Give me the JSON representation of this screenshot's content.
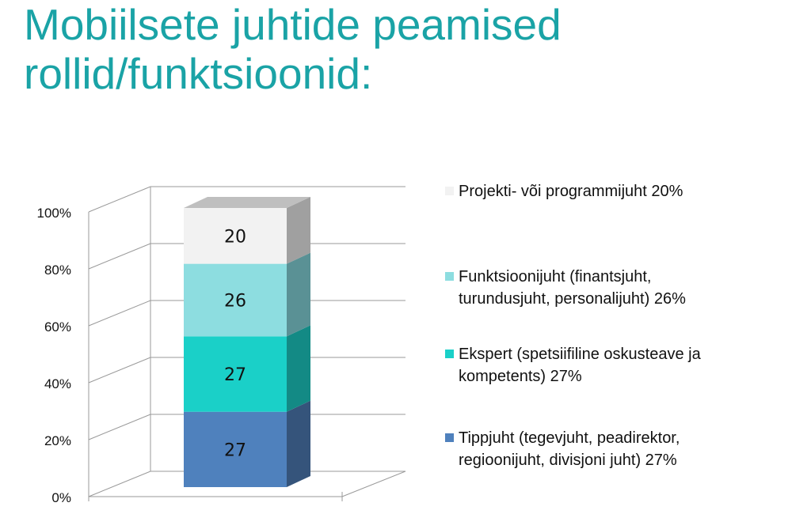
{
  "title": [
    "Mobiilsete juhtide peamised",
    "rollid/funktsioonid:"
  ],
  "colors": {
    "title": "#1aa3a6",
    "grid": "#9a9a9a",
    "axis_text": "#111111"
  },
  "chart_data": {
    "type": "bar",
    "stacked": true,
    "percent": true,
    "three_d": true,
    "categories": [
      ""
    ],
    "ylim": [
      0,
      100
    ],
    "yticks": [
      "0%",
      "20%",
      "40%",
      "60%",
      "80%",
      "100%"
    ],
    "grid": true,
    "legend_position": "right",
    "series": [
      {
        "name": "Tippjuht (tegevjuht, peadirektor, regioonijuht, divisjoni juht)  27%",
        "value": 27,
        "label": "27",
        "color": "#4f81bd",
        "side": "#35547b",
        "legend_lines": [
          "Tippjuht (tegevjuht, peadirektor,",
          "regioonijuht, divisjoni juht)  27%"
        ]
      },
      {
        "name": "Ekspert (spetsiifiline oskusteave ja kompetents)  27%",
        "value": 27,
        "label": "27",
        "color": "#1ad0c8",
        "side": "#138a85",
        "legend_lines": [
          "Ekspert (spetsiifiline oskusteave ja",
          "kompetents)  27%"
        ]
      },
      {
        "name": "Funktsioonijuht (finantsjuht, turundusjuht, personalijuht)  26%",
        "value": 26,
        "label": "26",
        "color": "#8ddde0",
        "side": "#5a9195",
        "legend_lines": [
          "Funktsioonijuht (finantsjuht,",
          "turundusjuht, personalijuht)  26%"
        ]
      },
      {
        "name": "Projekti- või programmijuht  20%",
        "value": 20,
        "label": "20",
        "color": "#f2f2f2",
        "side": "#a0a0a0",
        "legend_lines": [
          "Projekti- või programmijuht  20%"
        ]
      }
    ]
  }
}
